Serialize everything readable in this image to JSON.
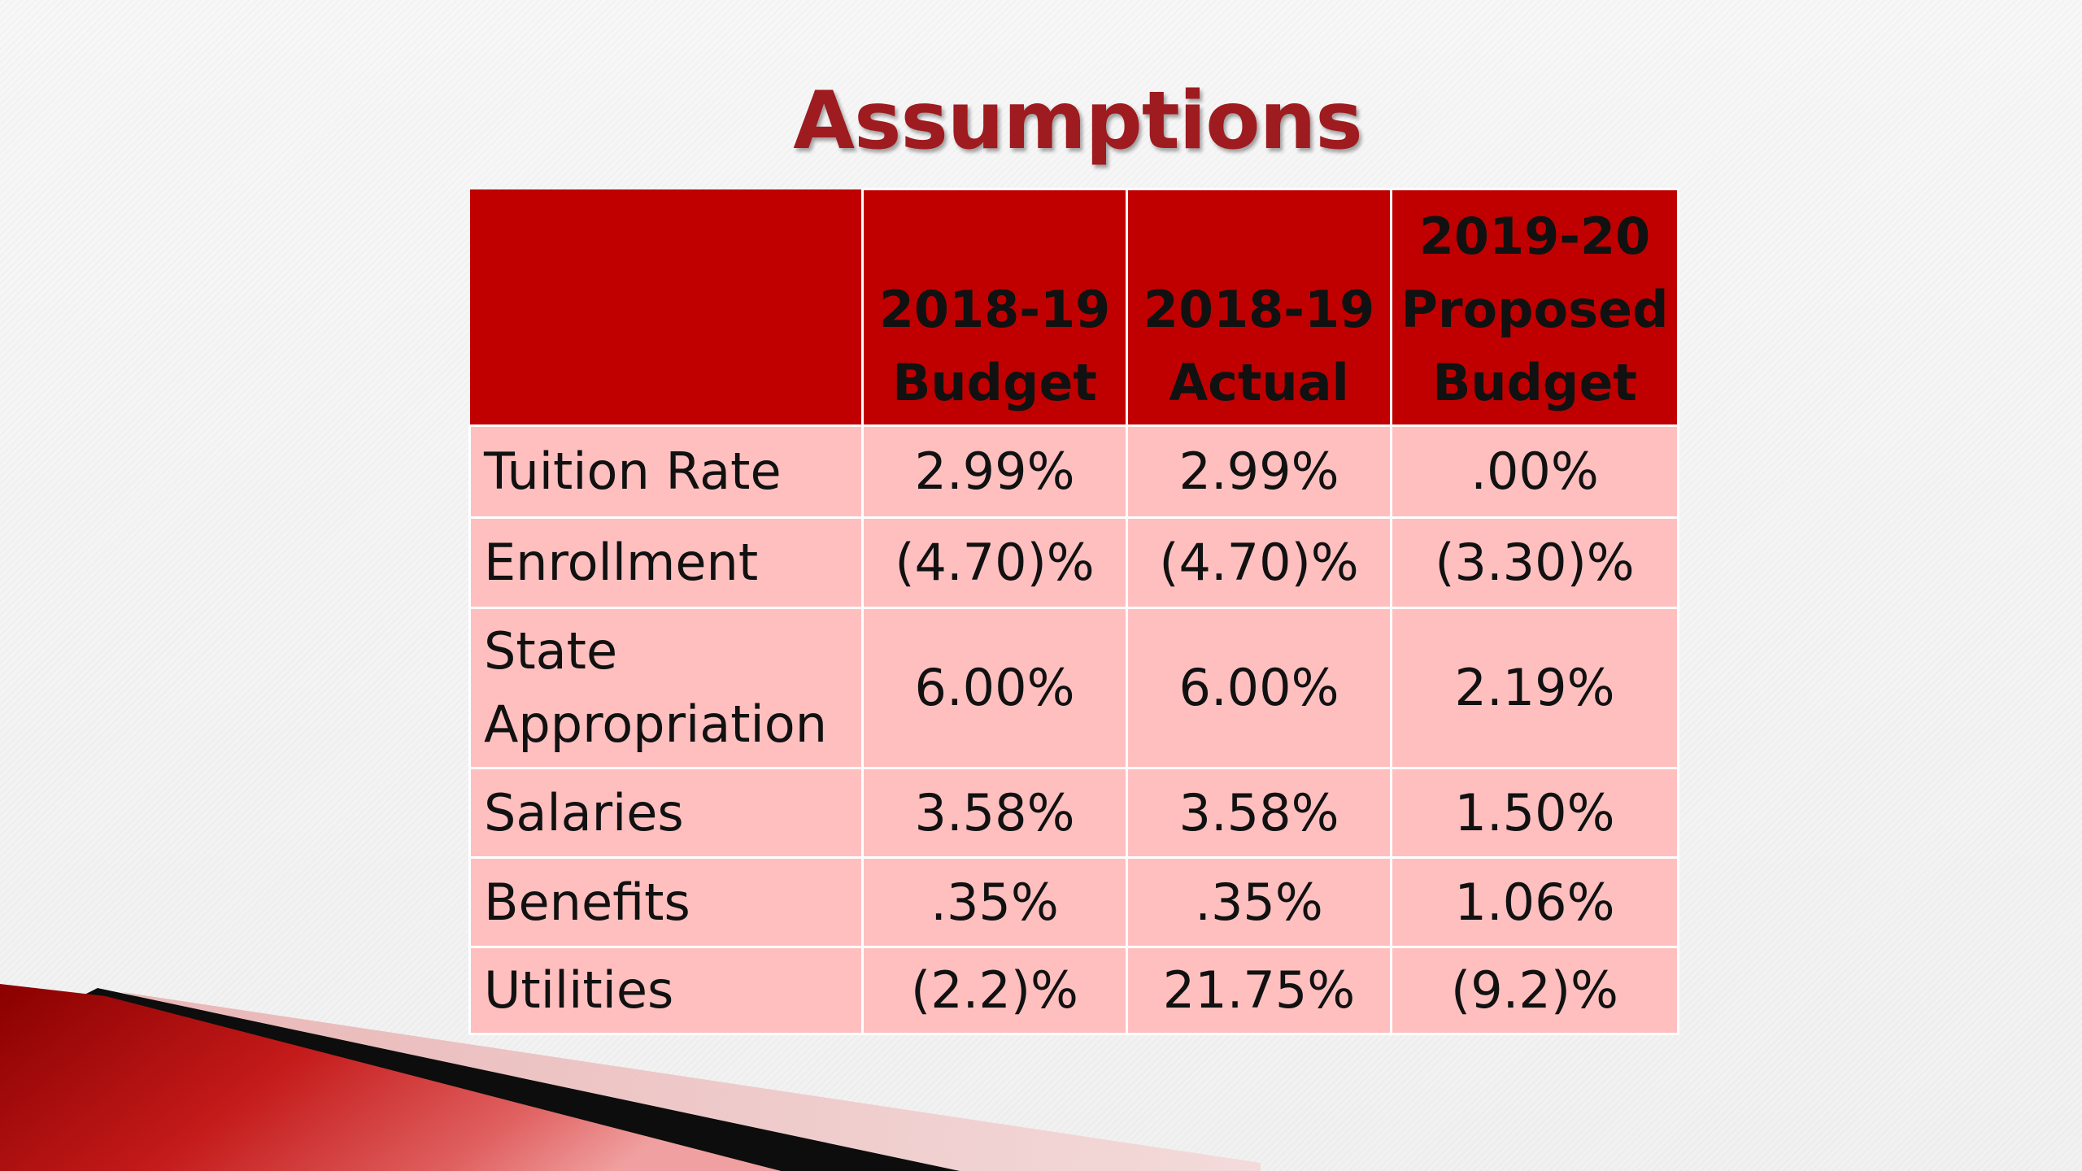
{
  "title": "Assumptions",
  "table": {
    "headers": [
      {
        "lines": [
          ""
        ]
      },
      {
        "lines": [
          "2018-19",
          "Budget"
        ]
      },
      {
        "lines": [
          "2018-19",
          "Actual"
        ]
      },
      {
        "lines": [
          "2019-20",
          "Proposed",
          "Budget"
        ]
      }
    ],
    "rows": [
      {
        "label_lines": [
          "Tuition Rate"
        ],
        "values": [
          "2.99%",
          "2.99%",
          ".00%"
        ]
      },
      {
        "label_lines": [
          "Enrollment"
        ],
        "values": [
          "(4.70)%",
          "(4.70)%",
          "(3.30)%"
        ]
      },
      {
        "label_lines": [
          "State",
          "Appropriation"
        ],
        "values": [
          "6.00%",
          "6.00%",
          "2.19%"
        ]
      },
      {
        "label_lines": [
          "Salaries"
        ],
        "values": [
          "3.58%",
          "3.58%",
          "1.50%"
        ]
      },
      {
        "label_lines": [
          "Benefits"
        ],
        "values": [
          ".35%",
          ".35%",
          "1.06%"
        ]
      },
      {
        "label_lines": [
          "Utilities"
        ],
        "values": [
          "(2.2)%",
          "21.75%",
          "(9.2)%"
        ]
      }
    ]
  },
  "colors": {
    "title": "#9e1b1f",
    "header_fill": "#c00000",
    "body_fill": "#ffbfbf",
    "grid_lines": "#ffffff",
    "accent_red": "#c00000",
    "accent_black": "#111111"
  }
}
